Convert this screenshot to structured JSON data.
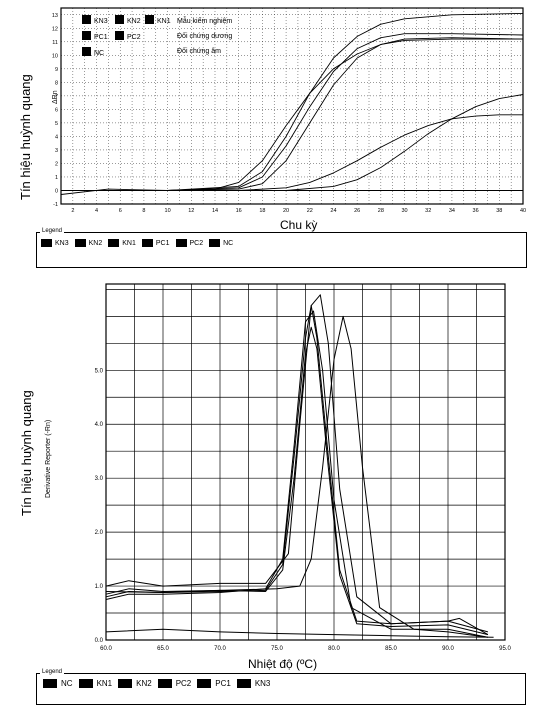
{
  "chart_data": [
    {
      "type": "line",
      "xlabel": "Chu kỳ",
      "ylabel": "Tín hiệu huỳnh quang",
      "ylabel_axis": "ΔRn",
      "xlim": [
        1,
        40
      ],
      "ylim": [
        -1,
        13.5
      ],
      "xticks": [
        2,
        4,
        6,
        8,
        10,
        12,
        14,
        16,
        18,
        20,
        22,
        24,
        26,
        28,
        30,
        32,
        34,
        36,
        38,
        40
      ],
      "yticks": [
        -1,
        0,
        1,
        2,
        3,
        4,
        5,
        6,
        7,
        8,
        9,
        10,
        11,
        12,
        13
      ],
      "grid": true,
      "inner_legend": {
        "items": [
          {
            "label": "KN3"
          },
          {
            "label": "KN2"
          },
          {
            "label": "KN1"
          },
          {
            "label": "PC1"
          },
          {
            "label": "PC2"
          },
          {
            "label": "NC"
          }
        ],
        "group_labels": [
          "Mẫu kiểm nghiệm",
          "Đối chứng dương",
          "Đối chứng âm"
        ]
      },
      "legend": {
        "title": "Legend",
        "items": [
          "KN3",
          "KN2",
          "KN1",
          "PC1",
          "PC2",
          "NC"
        ]
      },
      "series": [
        {
          "name": "KN3",
          "x": [
            1,
            10,
            14,
            16,
            18,
            20,
            22,
            24,
            26,
            28,
            30,
            34,
            40
          ],
          "y": [
            0,
            0,
            0.1,
            0.6,
            2.2,
            4.8,
            7.2,
            9,
            10.1,
            10.8,
            11.1,
            11.2,
            11.2
          ]
        },
        {
          "name": "KN2",
          "x": [
            1,
            10,
            16,
            18,
            20,
            22,
            24,
            26,
            28,
            30,
            34,
            40
          ],
          "y": [
            0,
            0,
            0.2,
            1,
            3.3,
            6.2,
            8.8,
            10.5,
            11.3,
            11.6,
            11.6,
            11.5
          ]
        },
        {
          "name": "KN1",
          "x": [
            1,
            10,
            16,
            18,
            20,
            22,
            24,
            26,
            28,
            30,
            34,
            40
          ],
          "y": [
            0,
            0,
            0.1,
            0.5,
            2.2,
            5,
            7.8,
            9.8,
            10.8,
            11.2,
            11.3,
            11.2
          ]
        },
        {
          "name": "PC1",
          "x": [
            1,
            10,
            16,
            18,
            20,
            22,
            24,
            26,
            28,
            30,
            34,
            40
          ],
          "y": [
            0,
            0,
            0.3,
            1.4,
            4,
            7.2,
            9.8,
            11.4,
            12.3,
            12.7,
            13,
            13.1
          ]
        },
        {
          "name": "PC2",
          "x": [
            1,
            16,
            20,
            22,
            24,
            26,
            28,
            30,
            32,
            34,
            36,
            38,
            40
          ],
          "y": [
            0,
            0,
            0.2,
            0.6,
            1.3,
            2.2,
            3.2,
            4.1,
            4.8,
            5.3,
            5.5,
            5.6,
            5.6
          ]
        },
        {
          "name": "NC",
          "x": [
            1,
            20,
            24,
            26,
            28,
            30,
            32,
            34,
            36,
            38,
            40
          ],
          "y": [
            0,
            0,
            0.3,
            0.8,
            1.7,
            2.9,
            4.2,
            5.3,
            6.2,
            6.8,
            7.1
          ]
        },
        {
          "name": "NC baseline",
          "x": [
            1,
            5,
            10,
            20,
            30,
            40
          ],
          "y": [
            -0.3,
            0.1,
            0,
            0,
            0,
            0
          ]
        }
      ]
    },
    {
      "type": "line",
      "xlabel": "Nhiệt độ (ºC)",
      "ylabel": "Tín hiệu huỳnh quang",
      "ylabel_axis": "Derivative Reporter (-Rn)",
      "xlim": [
        60,
        95
      ],
      "ylim": [
        0,
        6.6
      ],
      "xticks": [
        60,
        65,
        70,
        75,
        80,
        85,
        90,
        95
      ],
      "yticks": [
        0,
        1,
        2,
        3,
        4,
        5
      ],
      "grid": true,
      "legend": {
        "title": "Legend",
        "items": [
          "NC",
          "KN1",
          "KN2",
          "PC2",
          "PC1",
          "KN3"
        ]
      },
      "series": [
        {
          "name": "NC",
          "x": [
            60,
            65,
            70,
            75,
            80,
            85,
            90,
            94
          ],
          "y": [
            0.15,
            0.2,
            0.15,
            0.12,
            0.1,
            0.08,
            0.06,
            0.05
          ]
        },
        {
          "name": "KN1",
          "x": [
            60,
            62,
            65,
            70,
            74,
            75.5,
            76.5,
            77.5,
            78,
            78.5,
            79.5,
            80.5,
            82,
            85,
            90,
            93.5
          ],
          "y": [
            0.85,
            0.95,
            0.9,
            0.92,
            0.9,
            1.3,
            3.0,
            5.3,
            5.8,
            5.4,
            3.2,
            1.2,
            0.3,
            0.25,
            0.28,
            0.1
          ]
        },
        {
          "name": "KN2",
          "x": [
            60,
            62,
            65,
            70,
            74,
            75.5,
            76.5,
            77.5,
            78,
            78.5,
            79.5,
            80.5,
            82,
            85,
            90,
            93.5
          ],
          "y": [
            0.8,
            0.9,
            0.88,
            0.9,
            0.92,
            1.4,
            3.4,
            5.6,
            6.2,
            5.6,
            3.4,
            1.3,
            0.35,
            0.3,
            0.35,
            0.15
          ]
        },
        {
          "name": "PC2",
          "x": [
            60,
            65,
            70,
            75,
            77,
            78,
            79,
            80,
            80.8,
            81.5,
            82.5,
            84,
            87,
            90,
            93.5
          ],
          "y": [
            0.9,
            0.88,
            0.92,
            0.95,
            1.0,
            1.5,
            3.2,
            5.2,
            6.0,
            5.4,
            3.2,
            0.6,
            0.2,
            0.15,
            0.05
          ]
        },
        {
          "name": "PC1",
          "x": [
            60,
            62,
            65,
            70,
            74,
            76,
            77,
            78,
            78.8,
            79.5,
            80.5,
            82,
            85,
            90,
            91,
            93.5
          ],
          "y": [
            1.0,
            1.1,
            1.0,
            1.05,
            1.05,
            1.6,
            4.0,
            6.2,
            6.4,
            5.5,
            2.8,
            0.8,
            0.3,
            0.35,
            0.4,
            0.1
          ]
        },
        {
          "name": "KN3",
          "x": [
            60,
            62,
            65,
            70,
            74,
            75.5,
            76.5,
            77.5,
            78.2,
            79,
            80,
            81.5,
            85,
            90,
            93.5
          ],
          "y": [
            0.75,
            0.85,
            0.85,
            0.88,
            0.95,
            1.5,
            3.6,
            5.9,
            6.1,
            5.0,
            2.6,
            0.6,
            0.2,
            0.2,
            0.05
          ]
        }
      ]
    }
  ]
}
